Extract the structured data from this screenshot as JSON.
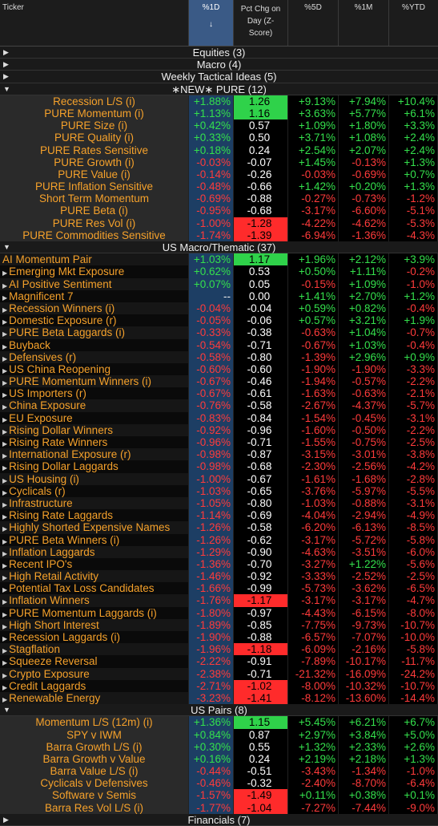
{
  "header": {
    "ticker": "Ticker",
    "col1": "%1D",
    "col1_sort": "↓",
    "col2_lines": [
      "Pct Chg on",
      "Day (Z-",
      "Score)"
    ],
    "col3": "%5D",
    "col4": "%1M",
    "col5": "%YTD"
  },
  "groups": {
    "equities": "Equities (3)",
    "macro": "Macro (4)",
    "weekly": "Weekly Tactical Ideas (5)",
    "pure": "∗NEW∗ PURE (12)",
    "us_macro": "US Macro/Thematic (37)",
    "us_pairs": "US Pairs (8)",
    "last": "Financials (7)"
  },
  "pure_rows": [
    {
      "name": "Recession L/S (i)",
      "d1": "+1.88%",
      "z": "1.26",
      "z_hl": "green",
      "d5": "+9.13%",
      "m1": "+7.94%",
      "ytd": "+10.4%"
    },
    {
      "name": "PURE Momentum (i)",
      "d1": "+1.13%",
      "z": "1.16",
      "z_hl": "green",
      "d5": "+3.63%",
      "m1": "+5.77%",
      "ytd": "+6.1%"
    },
    {
      "name": "PURE Size (i)",
      "d1": "+0.42%",
      "z": "0.57",
      "z_hl": "",
      "d5": "+1.09%",
      "m1": "+1.80%",
      "ytd": "+3.3%"
    },
    {
      "name": "PURE Quality (i)",
      "d1": "+0.33%",
      "z": "0.50",
      "z_hl": "",
      "d5": "+3.71%",
      "m1": "+1.08%",
      "ytd": "+2.4%"
    },
    {
      "name": "PURE Rates Sensitive",
      "d1": "+0.18%",
      "z": "0.24",
      "z_hl": "",
      "d5": "+2.54%",
      "m1": "+2.07%",
      "ytd": "+2.4%"
    },
    {
      "name": "PURE Growth (i)",
      "d1": "-0.03%",
      "z": "-0.07",
      "z_hl": "",
      "d5": "+1.45%",
      "m1": "-0.13%",
      "ytd": "+1.3%"
    },
    {
      "name": "PURE Value (i)",
      "d1": "-0.14%",
      "z": "-0.26",
      "z_hl": "",
      "d5": "-0.03%",
      "m1": "-0.69%",
      "ytd": "+0.7%"
    },
    {
      "name": "PURE Inflation Sensitive",
      "d1": "-0.48%",
      "z": "-0.66",
      "z_hl": "",
      "d5": "+1.42%",
      "m1": "+0.20%",
      "ytd": "+1.3%"
    },
    {
      "name": "Short Term Momentum",
      "d1": "-0.69%",
      "z": "-0.88",
      "z_hl": "",
      "d5": "-0.27%",
      "m1": "-0.73%",
      "ytd": "-1.2%"
    },
    {
      "name": "PURE Beta (i)",
      "d1": "-0.95%",
      "z": "-0.68",
      "z_hl": "",
      "d5": "-3.17%",
      "m1": "-6.60%",
      "ytd": "-5.1%"
    },
    {
      "name": "PURE Res Vol (i)",
      "d1": "-1.00%",
      "z": "-1.28",
      "z_hl": "red",
      "d5": "-4.22%",
      "m1": "-4.62%",
      "ytd": "-5.3%"
    },
    {
      "name": "PURE Commodities Sensitive",
      "d1": "-1.74%",
      "z": "-1.39",
      "z_hl": "red",
      "d5": "-6.94%",
      "m1": "-1.36%",
      "ytd": "-4.3%"
    }
  ],
  "macro_rows": [
    {
      "name": "AI Momentum Pair",
      "tri": false,
      "d1": "+1.03%",
      "z": "1.17",
      "z_hl": "green",
      "d5": "+1.96%",
      "m1": "+2.12%",
      "ytd": "+3.9%"
    },
    {
      "name": "Emerging Mkt Exposure",
      "tri": true,
      "d1": "+0.62%",
      "z": "0.53",
      "z_hl": "",
      "d5": "+0.50%",
      "m1": "+1.11%",
      "ytd": "-0.2%"
    },
    {
      "name": "AI Positive Sentiment",
      "tri": true,
      "d1": "+0.07%",
      "z": "0.05",
      "z_hl": "",
      "d5": "-0.15%",
      "m1": "+1.09%",
      "ytd": "-1.0%"
    },
    {
      "name": "Magnificent 7",
      "tri": true,
      "d1": "--",
      "z": "0.00",
      "z_hl": "",
      "d5": "+1.41%",
      "m1": "+2.70%",
      "ytd": "+1.2%"
    },
    {
      "name": "Recession Winners (i)",
      "tri": true,
      "d1": "-0.04%",
      "z": "-0.04",
      "z_hl": "",
      "d5": "+0.59%",
      "m1": "+0.82%",
      "ytd": "-0.4%"
    },
    {
      "name": "Domestic Exposure (r)",
      "tri": true,
      "d1": "-0.05%",
      "z": "-0.06",
      "z_hl": "",
      "d5": "+0.57%",
      "m1": "+3.21%",
      "ytd": "+1.9%"
    },
    {
      "name": "PURE Beta Laggards (i)",
      "tri": true,
      "d1": "-0.33%",
      "z": "-0.38",
      "z_hl": "",
      "d5": "-0.63%",
      "m1": "+1.04%",
      "ytd": "-0.7%"
    },
    {
      "name": "Buyback",
      "tri": true,
      "d1": "-0.54%",
      "z": "-0.71",
      "z_hl": "",
      "d5": "-0.67%",
      "m1": "+1.03%",
      "ytd": "-0.4%"
    },
    {
      "name": "Defensives (r)",
      "tri": true,
      "d1": "-0.58%",
      "z": "-0.80",
      "z_hl": "",
      "d5": "-1.39%",
      "m1": "+2.96%",
      "ytd": "+0.9%"
    },
    {
      "name": "US China Reopening",
      "tri": true,
      "d1": "-0.60%",
      "z": "-0.60",
      "z_hl": "",
      "d5": "-1.90%",
      "m1": "-1.90%",
      "ytd": "-3.3%"
    },
    {
      "name": "PURE Momentum Winners (i)",
      "tri": true,
      "d1": "-0.67%",
      "z": "-0.46",
      "z_hl": "",
      "d5": "-1.94%",
      "m1": "-0.57%",
      "ytd": "-2.2%"
    },
    {
      "name": "US Importers (r)",
      "tri": true,
      "d1": "-0.67%",
      "z": "-0.61",
      "z_hl": "",
      "d5": "-1.63%",
      "m1": "-0.63%",
      "ytd": "-2.1%"
    },
    {
      "name": "China Exposure",
      "tri": true,
      "d1": "-0.76%",
      "z": "-0.58",
      "z_hl": "",
      "d5": "-2.67%",
      "m1": "-4.37%",
      "ytd": "-5.7%"
    },
    {
      "name": "EU Exposure",
      "tri": true,
      "d1": "-0.83%",
      "z": "-0.84",
      "z_hl": "",
      "d5": "-1.54%",
      "m1": "-0.45%",
      "ytd": "-3.1%"
    },
    {
      "name": "Rising Dollar Winners",
      "tri": true,
      "d1": "-0.92%",
      "z": "-0.96",
      "z_hl": "",
      "d5": "-1.60%",
      "m1": "-0.50%",
      "ytd": "-2.2%"
    },
    {
      "name": "Rising Rate Winners",
      "tri": true,
      "d1": "-0.96%",
      "z": "-0.71",
      "z_hl": "",
      "d5": "-1.55%",
      "m1": "-0.75%",
      "ytd": "-2.5%"
    },
    {
      "name": "International Exposure (r)",
      "tri": true,
      "d1": "-0.98%",
      "z": "-0.87",
      "z_hl": "",
      "d5": "-3.15%",
      "m1": "-3.01%",
      "ytd": "-3.8%"
    },
    {
      "name": "Rising Dollar Laggards",
      "tri": true,
      "d1": "-0.98%",
      "z": "-0.68",
      "z_hl": "",
      "d5": "-2.30%",
      "m1": "-2.56%",
      "ytd": "-4.2%"
    },
    {
      "name": "US Housing (i)",
      "tri": true,
      "d1": "-1.00%",
      "z": "-0.67",
      "z_hl": "",
      "d5": "-1.61%",
      "m1": "-1.68%",
      "ytd": "-2.8%"
    },
    {
      "name": "Cyclicals (r)",
      "tri": true,
      "d1": "-1.03%",
      "z": "-0.65",
      "z_hl": "",
      "d5": "-3.76%",
      "m1": "-5.97%",
      "ytd": "-5.5%"
    },
    {
      "name": "Infrastructure",
      "tri": true,
      "d1": "-1.05%",
      "z": "-0.80",
      "z_hl": "",
      "d5": "-1.03%",
      "m1": "-0.88%",
      "ytd": "-3.1%"
    },
    {
      "name": "Rising Rate Laggards",
      "tri": true,
      "d1": "-1.14%",
      "z": "-0.69",
      "z_hl": "",
      "d5": "-4.04%",
      "m1": "-2.94%",
      "ytd": "-4.9%"
    },
    {
      "name": "Highly Shorted Expensive Names",
      "tri": true,
      "d1": "-1.26%",
      "z": "-0.58",
      "z_hl": "",
      "d5": "-6.20%",
      "m1": "-6.13%",
      "ytd": "-8.5%"
    },
    {
      "name": "PURE Beta Winners (i)",
      "tri": true,
      "d1": "-1.26%",
      "z": "-0.62",
      "z_hl": "",
      "d5": "-3.17%",
      "m1": "-5.72%",
      "ytd": "-5.8%"
    },
    {
      "name": "Inflation Laggards",
      "tri": true,
      "d1": "-1.29%",
      "z": "-0.90",
      "z_hl": "",
      "d5": "-4.63%",
      "m1": "-3.51%",
      "ytd": "-6.0%"
    },
    {
      "name": "Recent IPO's",
      "tri": true,
      "d1": "-1.36%",
      "z": "-0.70",
      "z_hl": "",
      "d5": "-3.27%",
      "m1": "+1.22%",
      "ytd": "-5.6%"
    },
    {
      "name": "High Retail Activity",
      "tri": true,
      "d1": "-1.46%",
      "z": "-0.92",
      "z_hl": "",
      "d5": "-3.33%",
      "m1": "-2.52%",
      "ytd": "-2.5%"
    },
    {
      "name": "Potential Tax Loss Candidates",
      "tri": true,
      "d1": "-1.66%",
      "z": "-0.99",
      "z_hl": "",
      "d5": "-5.73%",
      "m1": "-3.62%",
      "ytd": "-6.5%"
    },
    {
      "name": "Inflation Winners",
      "tri": true,
      "d1": "-1.76%",
      "z": "-1.17",
      "z_hl": "red",
      "d5": "-3.17%",
      "m1": "-3.17%",
      "ytd": "-4.7%"
    },
    {
      "name": "PURE Momentum Laggards (i)",
      "tri": true,
      "d1": "-1.80%",
      "z": "-0.97",
      "z_hl": "",
      "d5": "-4.43%",
      "m1": "-6.15%",
      "ytd": "-8.0%"
    },
    {
      "name": "High Short Interest",
      "tri": true,
      "d1": "-1.89%",
      "z": "-0.85",
      "z_hl": "",
      "d5": "-7.75%",
      "m1": "-9.73%",
      "ytd": "-10.7%"
    },
    {
      "name": "Recession Laggards (i)",
      "tri": true,
      "d1": "-1.90%",
      "z": "-0.88",
      "z_hl": "",
      "d5": "-6.57%",
      "m1": "-7.07%",
      "ytd": "-10.0%"
    },
    {
      "name": "Stagflation",
      "tri": true,
      "d1": "-1.96%",
      "z": "-1.18",
      "z_hl": "red",
      "d5": "-6.09%",
      "m1": "-2.16%",
      "ytd": "-5.8%"
    },
    {
      "name": "Squeeze Reversal",
      "tri": true,
      "d1": "-2.22%",
      "z": "-0.91",
      "z_hl": "",
      "d5": "-7.89%",
      "m1": "-10.17%",
      "ytd": "-11.7%"
    },
    {
      "name": "Crypto Exposure",
      "tri": true,
      "d1": "-2.38%",
      "z": "-0.71",
      "z_hl": "",
      "d5": "-21.32%",
      "m1": "-16.09%",
      "ytd": "-24.2%"
    },
    {
      "name": "Credit Laggards",
      "tri": true,
      "d1": "-2.71%",
      "z": "-1.02",
      "z_hl": "red",
      "d5": "-8.00%",
      "m1": "-10.32%",
      "ytd": "-10.7%"
    },
    {
      "name": "Renewable Energy",
      "tri": true,
      "d1": "-3.23%",
      "z": "-1.41",
      "z_hl": "red",
      "d5": "-8.12%",
      "m1": "-13.60%",
      "ytd": "-14.4%"
    }
  ],
  "pairs_rows": [
    {
      "name": "Momentum L/S (12m) (i)",
      "d1": "+1.36%",
      "z": "1.15",
      "z_hl": "green",
      "d5": "+5.45%",
      "m1": "+6.21%",
      "ytd": "+6.7%"
    },
    {
      "name": "SPY v IWM",
      "d1": "+0.84%",
      "z": "0.87",
      "z_hl": "",
      "d5": "+2.97%",
      "m1": "+3.84%",
      "ytd": "+5.0%"
    },
    {
      "name": "Barra Growth L/S (i)",
      "d1": "+0.30%",
      "z": "0.55",
      "z_hl": "",
      "d5": "+1.32%",
      "m1": "+2.33%",
      "ytd": "+2.6%"
    },
    {
      "name": "Barra Growth v Value",
      "d1": "+0.16%",
      "z": "0.24",
      "z_hl": "",
      "d5": "+2.19%",
      "m1": "+2.18%",
      "ytd": "+1.3%"
    },
    {
      "name": "Barra Value L/S (i)",
      "d1": "-0.44%",
      "z": "-0.51",
      "z_hl": "",
      "d5": "-3.43%",
      "m1": "-1.34%",
      "ytd": "-1.0%"
    },
    {
      "name": "Cyclicals v Defensives",
      "d1": "-0.46%",
      "z": "-0.32",
      "z_hl": "",
      "d5": "-2.40%",
      "m1": "-8.70%",
      "ytd": "-6.4%"
    },
    {
      "name": "Software v Semis",
      "d1": "-1.57%",
      "z": "-1.49",
      "z_hl": "red",
      "d5": "+0.11%",
      "m1": "+0.38%",
      "ytd": "+0.1%"
    },
    {
      "name": "Barra Res Vol L/S (i)",
      "d1": "-1.77%",
      "z": "-1.04",
      "z_hl": "red",
      "d5": "-7.27%",
      "m1": "-7.44%",
      "ytd": "-9.0%"
    }
  ]
}
